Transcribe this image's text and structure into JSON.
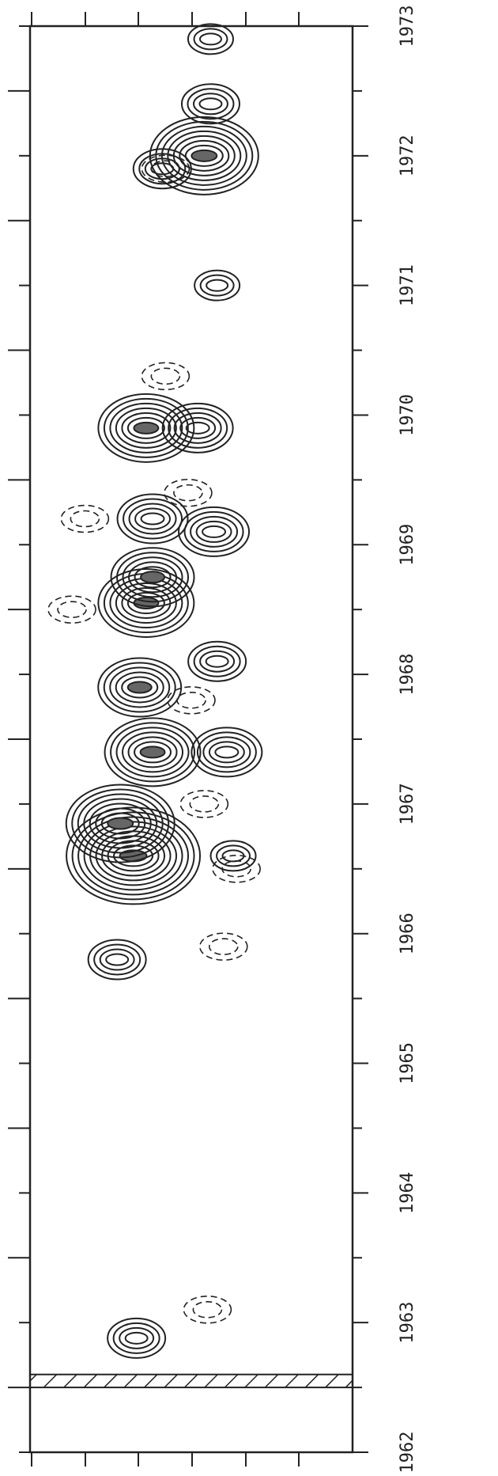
{
  "chart_data": {
    "type": "contour",
    "title": "",
    "xlabel": "",
    "ylabel": "",
    "time_axis": {
      "tick_labels": [
        "1962",
        "1963",
        "1964",
        "1965",
        "1966",
        "1967",
        "1968",
        "1969",
        "1970",
        "1971",
        "1972",
        "1973"
      ],
      "range": [
        1962,
        1973
      ]
    },
    "data_gap": {
      "from": 1962.5,
      "to": 1962.6,
      "pattern": "hatched"
    },
    "peaks": [
      {
        "t": 1962.88,
        "v": 0.33,
        "level": 4
      },
      {
        "t": 1965.8,
        "v": 0.27,
        "level": 4
      },
      {
        "t": 1966.6,
        "v": 0.32,
        "level": 10
      },
      {
        "t": 1966.85,
        "v": 0.28,
        "level": 8
      },
      {
        "t": 1967.4,
        "v": 0.38,
        "level": 7
      },
      {
        "t": 1967.9,
        "v": 0.34,
        "level": 6
      },
      {
        "t": 1968.55,
        "v": 0.36,
        "level": 7
      },
      {
        "t": 1968.75,
        "v": 0.38,
        "level": 6
      },
      {
        "t": 1969.2,
        "v": 0.38,
        "level": 5
      },
      {
        "t": 1969.9,
        "v": 0.36,
        "level": 7
      },
      {
        "t": 1971.0,
        "v": 0.58,
        "level": 3
      },
      {
        "t": 1971.9,
        "v": 0.41,
        "level": 4
      },
      {
        "t": 1972.0,
        "v": 0.54,
        "level": 8
      },
      {
        "t": 1972.4,
        "v": 0.56,
        "level": 4
      },
      {
        "t": 1972.9,
        "v": 0.56,
        "level": 3
      },
      {
        "t": 1969.9,
        "v": 0.52,
        "level": 5
      },
      {
        "t": 1969.1,
        "v": 0.57,
        "level": 5
      },
      {
        "t": 1968.1,
        "v": 0.58,
        "level": 4
      },
      {
        "t": 1967.4,
        "v": 0.61,
        "level": 5
      },
      {
        "t": 1966.6,
        "v": 0.63,
        "level": 3
      }
    ],
    "troughs": [
      {
        "t": 1963.1,
        "v": 0.55
      },
      {
        "t": 1965.9,
        "v": 0.6
      },
      {
        "t": 1966.5,
        "v": 0.64
      },
      {
        "t": 1967.0,
        "v": 0.54
      },
      {
        "t": 1967.8,
        "v": 0.5
      },
      {
        "t": 1968.5,
        "v": 0.13
      },
      {
        "t": 1969.2,
        "v": 0.17
      },
      {
        "t": 1969.4,
        "v": 0.49
      },
      {
        "t": 1970.3,
        "v": 0.42
      },
      {
        "t": 1971.9,
        "v": 0.42
      }
    ],
    "negative_contours": "dashed",
    "positive_contours": "solid",
    "grid": false
  }
}
